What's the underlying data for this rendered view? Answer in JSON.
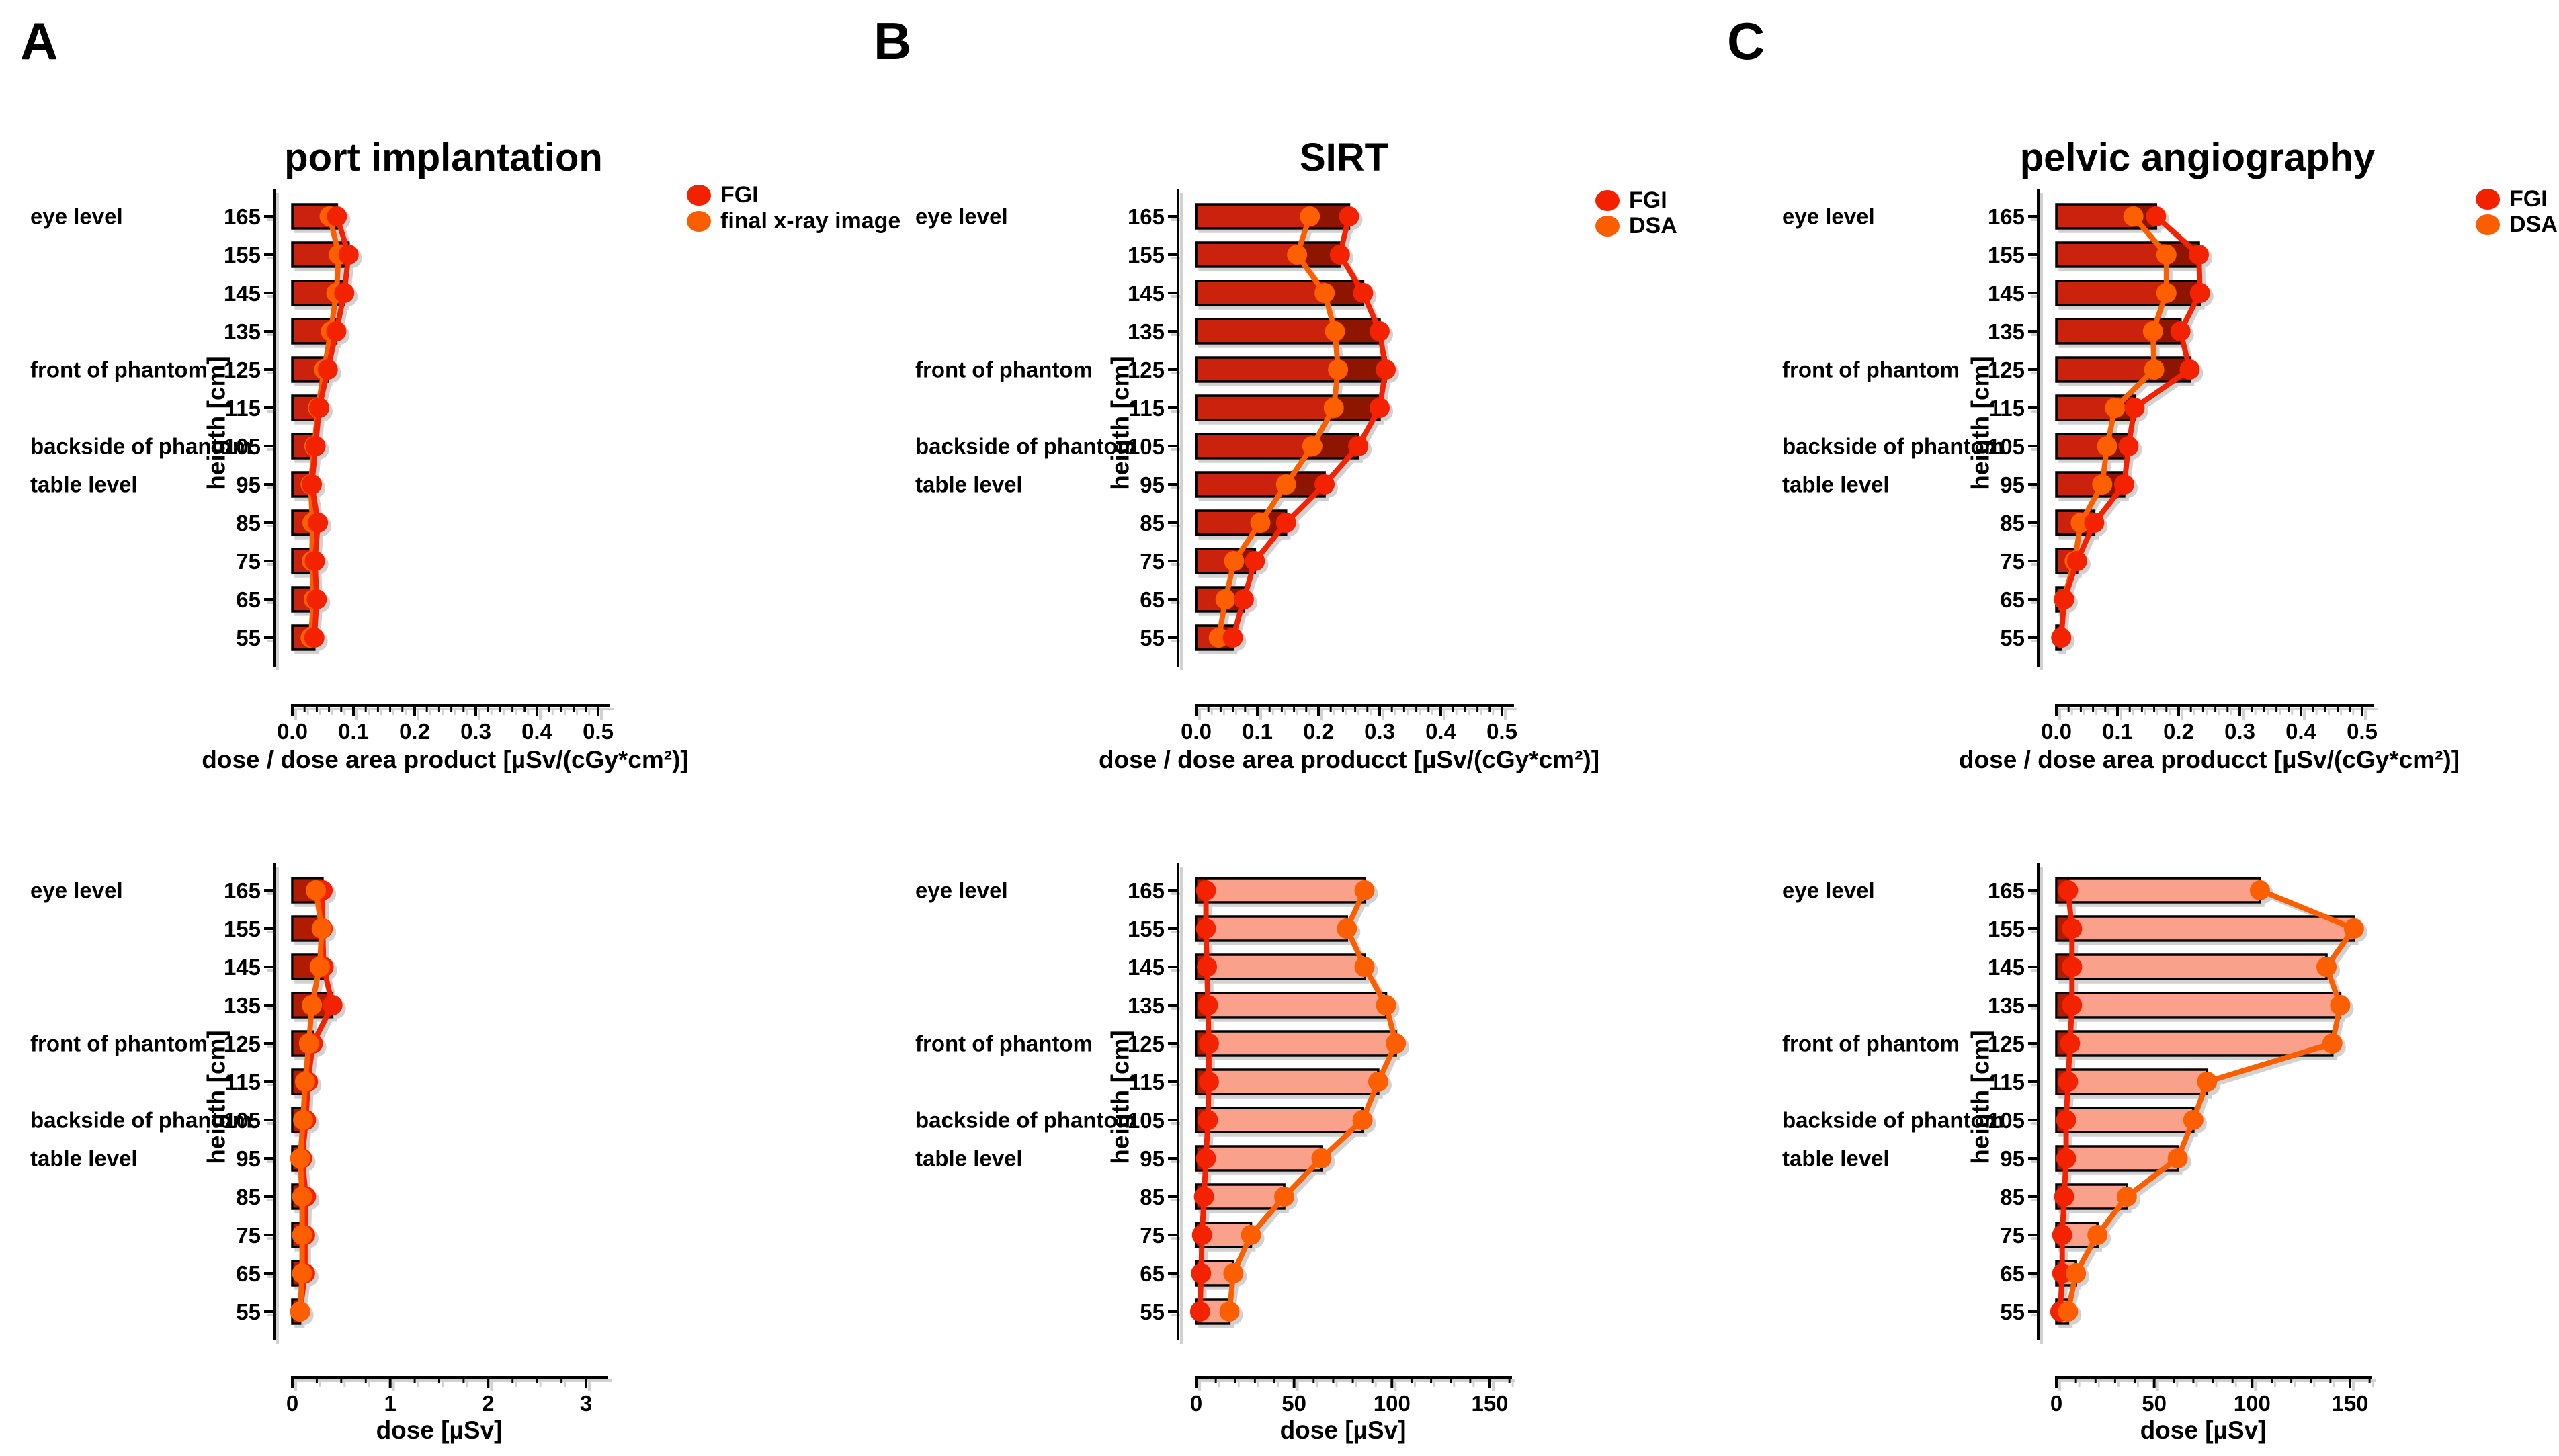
{
  "style": {
    "fgi_color": "#f32100",
    "dsa_color": "#fb5e00",
    "bar_back_top": "#8e1806",
    "bar_front_top": "#cb2110",
    "bar_back_bottom": "#f9a18b",
    "bar_front_bottom": "#b01f04",
    "axis_color": "#000000",
    "background": "#ffffff"
  },
  "figure": {
    "y_axis_label": "heigth [cm]",
    "categories": [
      165,
      155,
      145,
      135,
      125,
      115,
      105,
      95,
      85,
      75,
      65,
      55
    ],
    "level_annotations": [
      {
        "label": "eye level",
        "height": 165
      },
      {
        "label": "front of phantom",
        "height": 125
      },
      {
        "label": "backside of phantom",
        "height": 105
      },
      {
        "label": "table level",
        "height": 95
      }
    ]
  },
  "chart_data": [
    {
      "type": "bar",
      "orientation": "horizontal",
      "panel": "A",
      "title": "port implantation",
      "legend": [
        {
          "name": "FGI",
          "color": "#f32100"
        },
        {
          "name": "final x-ray image",
          "color": "#fb5e00"
        }
      ],
      "subcharts": [
        {
          "xlabel": "dose / dose area product [µSv/(cGy*cm²)]",
          "xlim": [
            0,
            0.5
          ],
          "xticks": [
            0,
            0.1,
            0.2,
            0.3,
            0.4,
            0.5
          ],
          "tick_labels": [
            "0.0",
            "0.1",
            "0.2",
            "0.3",
            "0.4",
            "0.5"
          ],
          "minor_step": 0.02,
          "series": [
            {
              "name": "FGI",
              "values": [
                0.073,
                0.092,
                0.085,
                0.072,
                0.058,
                0.044,
                0.038,
                0.032,
                0.042,
                0.037,
                0.04,
                0.036
              ]
            },
            {
              "name": "final x-ray image",
              "values": [
                0.061,
                0.076,
                0.072,
                0.063,
                0.052,
                0.042,
                0.036,
                0.03,
                0.033,
                0.032,
                0.035,
                0.03
              ]
            }
          ]
        },
        {
          "xlabel": "dose [µSv]",
          "xlim": [
            0,
            3
          ],
          "xticks": [
            0,
            1,
            2,
            3
          ],
          "tick_labels": [
            "0",
            "1",
            "2",
            "3"
          ],
          "minor_step": 0.25,
          "series": [
            {
              "name": "FGI",
              "values": [
                0.31,
                0.31,
                0.32,
                0.41,
                0.21,
                0.16,
                0.14,
                0.1,
                0.14,
                0.13,
                0.13,
                0.08
              ]
            },
            {
              "name": "final x-ray image",
              "values": [
                0.24,
                0.3,
                0.28,
                0.2,
                0.17,
                0.13,
                0.11,
                0.08,
                0.1,
                0.1,
                0.1,
                0.08
              ]
            }
          ]
        }
      ]
    },
    {
      "type": "bar",
      "orientation": "horizontal",
      "panel": "B",
      "title": "SIRT",
      "legend": [
        {
          "name": "FGI",
          "color": "#f32100"
        },
        {
          "name": "DSA",
          "color": "#fb5e00"
        }
      ],
      "subcharts": [
        {
          "xlabel": "dose / dose area producct [µSv/(cGy*cm²)]",
          "xlim": [
            0,
            0.5
          ],
          "xticks": [
            0,
            0.1,
            0.2,
            0.3,
            0.4,
            0.5
          ],
          "tick_labels": [
            "0.0",
            "0.1",
            "0.2",
            "0.3",
            "0.4",
            "0.5"
          ],
          "minor_step": 0.02,
          "series": [
            {
              "name": "FGI",
              "values": [
                0.25,
                0.235,
                0.273,
                0.3,
                0.31,
                0.3,
                0.265,
                0.21,
                0.147,
                0.096,
                0.078,
                0.06
              ]
            },
            {
              "name": "DSA",
              "values": [
                0.186,
                0.165,
                0.21,
                0.227,
                0.232,
                0.225,
                0.19,
                0.147,
                0.105,
                0.062,
                0.048,
                0.037
              ]
            }
          ]
        },
        {
          "xlabel": "dose [µSv]",
          "xlim": [
            0,
            150
          ],
          "xticks": [
            0,
            50,
            100,
            150
          ],
          "tick_labels": [
            "0",
            "50",
            "100",
            "150"
          ],
          "minor_step": 10,
          "series": [
            {
              "name": "FGI",
              "values": [
                5,
                5,
                5.5,
                6,
                6.5,
                6.5,
                6,
                5,
                4,
                3,
                2.5,
                2
              ]
            },
            {
              "name": "DSA",
              "values": [
                86,
                77,
                86,
                97,
                102,
                93,
                85,
                64,
                45,
                28,
                19,
                17
              ]
            }
          ]
        }
      ]
    },
    {
      "type": "bar",
      "orientation": "horizontal",
      "panel": "C",
      "title": "pelvic angiography",
      "legend": [
        {
          "name": "FGI",
          "color": "#f32100"
        },
        {
          "name": "DSA",
          "color": "#fb5e00"
        }
      ],
      "subcharts": [
        {
          "xlabel": "dose / dose area producct [µSv/(cGy*cm²)]",
          "xlim": [
            0,
            0.5
          ],
          "xticks": [
            0,
            0.1,
            0.2,
            0.3,
            0.4,
            0.5
          ],
          "tick_labels": [
            "0.0",
            "0.1",
            "0.2",
            "0.3",
            "0.4",
            "0.5"
          ],
          "minor_step": 0.02,
          "series": [
            {
              "name": "FGI",
              "values": [
                0.163,
                0.233,
                0.235,
                0.203,
                0.218,
                0.128,
                0.118,
                0.111,
                0.062,
                0.034,
                0.013,
                0.008
              ]
            },
            {
              "name": "DSA",
              "values": [
                0.126,
                0.18,
                0.18,
                0.158,
                0.16,
                0.096,
                0.083,
                0.075,
                0.04,
                0.03,
                0.012,
                0.008
              ]
            }
          ]
        },
        {
          "xlabel": "dose [µSv]",
          "xlim": [
            0,
            150
          ],
          "xticks": [
            0,
            50,
            100,
            150
          ],
          "tick_labels": [
            "0",
            "50",
            "100",
            "150"
          ],
          "minor_step": 10,
          "series": [
            {
              "name": "FGI",
              "values": [
                6,
                8,
                8,
                8,
                7,
                6,
                5,
                5,
                4,
                3,
                3,
                2
              ]
            },
            {
              "name": "DSA",
              "values": [
                104,
                152,
                138,
                145,
                141,
                77,
                70,
                62,
                36,
                21,
                10,
                6
              ]
            }
          ]
        }
      ]
    }
  ]
}
